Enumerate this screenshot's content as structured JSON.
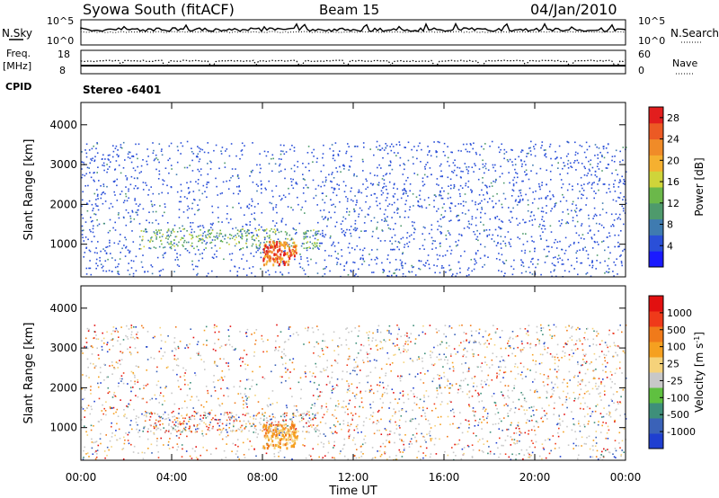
{
  "header": {
    "station": "Syowa South (fitACF)",
    "beam": "Beam 15",
    "date": "04/Jan/2010"
  },
  "noise_panel": {
    "left_label": "N.Sky",
    "right_label": "N.Search",
    "left_ticks": [
      "10^5",
      "10^0"
    ],
    "right_ticks": [
      "10^5",
      "10^0"
    ]
  },
  "freq_panel": {
    "left_label_top": "Freq.",
    "left_label_bottom": "[MHz]",
    "right_label": "Nave",
    "left_ticks": [
      "18",
      "8"
    ],
    "right_ticks": [
      "60",
      "0"
    ]
  },
  "cpid_label": "CPID",
  "program_label": "Stereo -6401",
  "chart_data": [
    {
      "type": "heatmap",
      "name": "Power",
      "ylabel": "Slant Range [km]",
      "y_ticks": [
        1000,
        2000,
        3000,
        4000
      ],
      "ylim": [
        180,
        4560
      ],
      "x_ticks": [
        "00:00",
        "04:00",
        "08:00",
        "12:00",
        "16:00",
        "20:00",
        "00:00"
      ],
      "colorbar": {
        "label": "Power [dB]",
        "ticks": [
          4,
          8,
          12,
          16,
          20,
          24,
          28
        ],
        "range": [
          0,
          30
        ],
        "colors": [
          "#1a1aff",
          "#2a4fd8",
          "#3f7bb0",
          "#4e9a6c",
          "#6bb84a",
          "#cfd43a",
          "#f5b030",
          "#f08b28",
          "#ec5a24",
          "#e21e1e"
        ]
      },
      "features": [
        {
          "t_hours": [
            0.0,
            24.0
          ],
          "range_km": [
            200,
            3600
          ],
          "description": "scattered low-power echoes"
        },
        {
          "t_hours": [
            2.5,
            10.5
          ],
          "range_km": [
            900,
            1400
          ],
          "description": "enhanced power band"
        },
        {
          "t_hours": [
            8.0,
            9.5
          ],
          "range_km": [
            500,
            1100
          ],
          "description": "strong echo streaks up to ~28 dB"
        }
      ]
    },
    {
      "type": "heatmap",
      "name": "Velocity",
      "ylabel": "Slant Range [km]",
      "y_ticks": [
        1000,
        2000,
        3000,
        4000
      ],
      "ylim": [
        180,
        4560
      ],
      "x_ticks": [
        "00:00",
        "04:00",
        "08:00",
        "12:00",
        "16:00",
        "20:00",
        "00:00"
      ],
      "xlabel": "Time UT",
      "colorbar": {
        "label": "Velocity [m s-1]",
        "ticks": [
          "1000",
          "500",
          "100",
          "25",
          "-25",
          "-100",
          "-500",
          "-1000"
        ],
        "colors": [
          "#1f3fd0",
          "#3a62b8",
          "#3e8f7a",
          "#5fc040",
          "#c8c8c8",
          "#f5d27a",
          "#f5a020",
          "#f07a1a",
          "#ef3a1a",
          "#e21010"
        ]
      }
    }
  ],
  "colors": {
    "axis": "#000000",
    "background": "#ffffff"
  }
}
